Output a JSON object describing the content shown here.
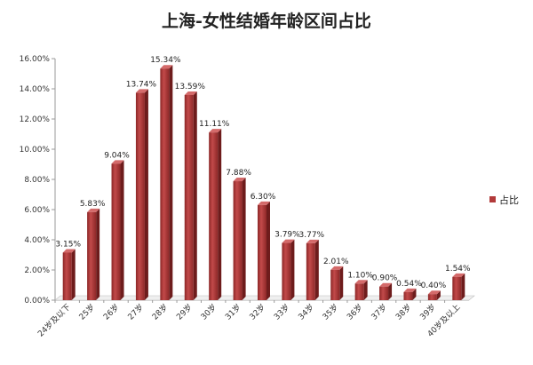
{
  "chart_data": {
    "type": "bar",
    "title": "上海-女性结婚年龄区间占比",
    "categories": [
      "24岁及以下",
      "25岁",
      "26岁",
      "27岁",
      "28岁",
      "29岁",
      "30岁",
      "31岁",
      "32岁",
      "33岁",
      "34岁",
      "35岁",
      "36岁",
      "37岁",
      "38岁",
      "39岁",
      "40岁及以上"
    ],
    "series": [
      {
        "name": "占比",
        "values": [
          3.15,
          5.83,
          9.04,
          13.74,
          15.34,
          13.59,
          11.11,
          7.88,
          6.3,
          3.79,
          3.77,
          2.01,
          1.1,
          0.9,
          0.54,
          0.4,
          1.54
        ],
        "labels": [
          "3.15%",
          "5.83%",
          "9.04%",
          "13.74%",
          "15.34%",
          "13.59%",
          "11.11%",
          "7.88%",
          "6.30%",
          "3.79%",
          "3.77%",
          "2.01%",
          "1.10%",
          "0.90%",
          "0.54%",
          "0.40%",
          "1.54%"
        ]
      }
    ],
    "yticks": [
      "0.00%",
      "2.00%",
      "4.00%",
      "6.00%",
      "8.00%",
      "10.00%",
      "12.00%",
      "14.00%",
      "16.00%"
    ],
    "ylim": [
      0,
      16
    ],
    "legend": "right",
    "grid": false,
    "colors": {
      "bar": "#b23a3a",
      "bar_light": "#d46a6a",
      "bar_dark": "#7a1f1f",
      "axis": "#999999"
    }
  }
}
